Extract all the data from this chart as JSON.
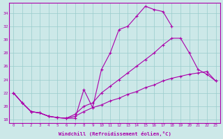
{
  "xlabel": "Windchill (Refroidissement éolien,°C)",
  "background_color": "#cce8e8",
  "line_color": "#aa00aa",
  "grid_color": "#99cccc",
  "xlim": [
    -0.5,
    23.5
  ],
  "ylim": [
    17.5,
    35.5
  ],
  "yticks": [
    18,
    20,
    22,
    24,
    26,
    28,
    30,
    32,
    34
  ],
  "xticks": [
    0,
    1,
    2,
    3,
    4,
    5,
    6,
    7,
    8,
    9,
    10,
    11,
    12,
    13,
    14,
    15,
    16,
    17,
    18,
    19,
    20,
    21,
    22,
    23
  ],
  "series1_x": [
    0,
    1,
    2,
    3,
    4,
    5,
    6,
    7,
    8,
    9,
    10,
    11,
    12,
    13,
    14,
    15,
    16,
    17,
    18
  ],
  "series1_y": [
    22.0,
    20.5,
    19.2,
    19.0,
    18.5,
    18.3,
    18.2,
    18.2,
    22.5,
    19.8,
    25.5,
    28.0,
    31.5,
    32.0,
    33.5,
    35.0,
    34.5,
    34.2,
    32.0
  ],
  "series2_x": [
    0,
    1,
    2,
    3,
    4,
    5,
    6,
    7,
    8,
    9,
    10,
    11,
    12,
    13,
    14,
    15,
    16,
    17,
    18,
    19,
    20,
    21,
    22,
    23
  ],
  "series2_y": [
    22.0,
    20.5,
    19.2,
    19.0,
    18.5,
    18.3,
    18.2,
    18.8,
    20.0,
    20.5,
    22.0,
    23.0,
    24.0,
    25.0,
    26.0,
    27.0,
    28.0,
    29.2,
    30.2,
    30.2,
    28.0,
    25.5,
    24.8,
    23.8
  ],
  "series3_x": [
    0,
    1,
    2,
    3,
    4,
    5,
    6,
    7,
    8,
    9,
    10,
    11,
    12,
    13,
    14,
    15,
    16,
    17,
    18,
    19,
    20,
    21,
    22,
    23
  ],
  "series3_y": [
    22.0,
    20.5,
    19.2,
    19.0,
    18.5,
    18.3,
    18.2,
    18.5,
    19.2,
    19.8,
    20.2,
    20.8,
    21.2,
    21.8,
    22.2,
    22.8,
    23.2,
    23.8,
    24.2,
    24.5,
    24.8,
    25.0,
    25.2,
    23.8
  ]
}
